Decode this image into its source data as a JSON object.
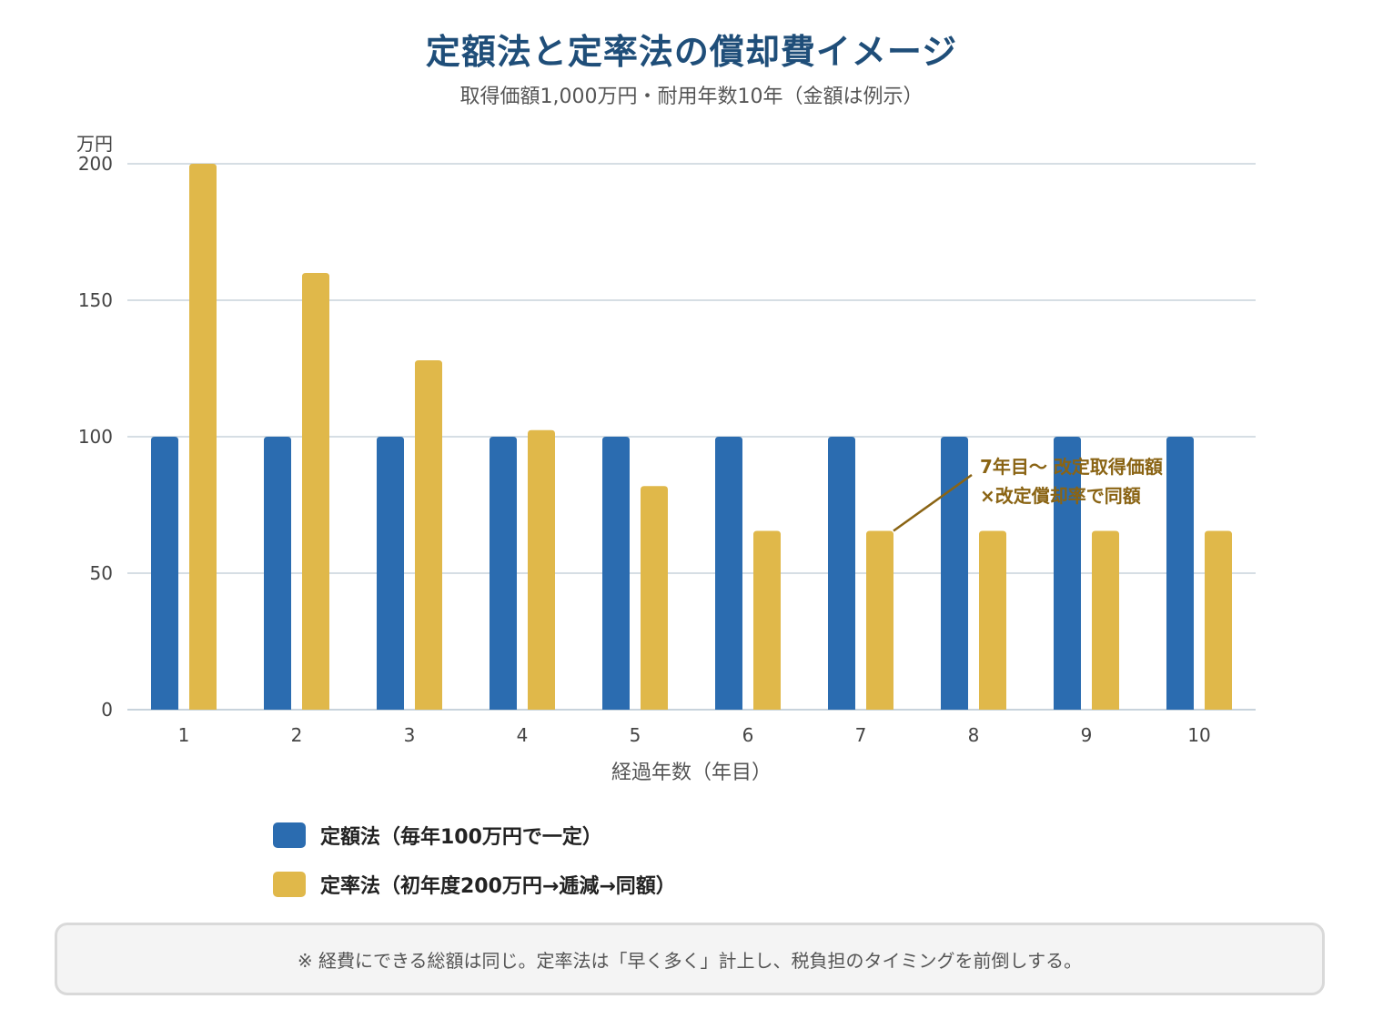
{
  "colors": {
    "fixed": "#2b6cb0",
    "declining": "#e0b84a",
    "annotation": "#8a6414",
    "grid": "#c8d3dc",
    "title": "#1f4e79"
  },
  "note": "※ 経費にできる総額は同じ。定率法は「早く多く」計上し、税負担のタイミングを前倒しする。",
  "chart_data": {
    "type": "bar",
    "title": "定額法と定率法の償却費イメージ",
    "subtitle": "取得価額1,000万円・耐用年数10年（金額は例示）",
    "xlabel": "経過年数（年目）",
    "ylabel": "万円",
    "ylim": [
      0,
      200
    ],
    "yticks": [
      0,
      50,
      100,
      150,
      200
    ],
    "grid": true,
    "legend_position": "bottom-left",
    "categories": [
      "1",
      "2",
      "3",
      "4",
      "5",
      "6",
      "7",
      "8",
      "9",
      "10"
    ],
    "series": [
      {
        "name": "定額法（毎年100万円で一定）",
        "color": "#2b6cb0",
        "values": [
          100,
          100,
          100,
          100,
          100,
          100,
          100,
          100,
          100,
          100
        ]
      },
      {
        "name": "定率法（初年度200万円→逓減→同額）",
        "color": "#e0b84a",
        "values": [
          200,
          160,
          128,
          102.4,
          81.9,
          65.5,
          65.5,
          65.5,
          65.5,
          65.5
        ]
      }
    ],
    "annotation": {
      "lines": [
        "7年目〜 改定取得価額",
        "×改定償却率で同額"
      ],
      "category": "7",
      "series_index": 1
    }
  }
}
